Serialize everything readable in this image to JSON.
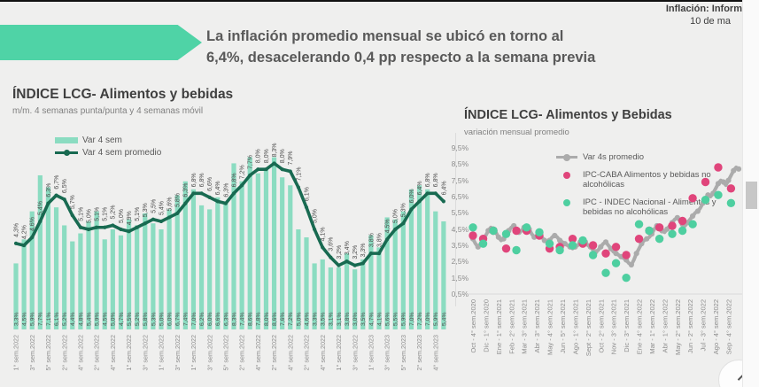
{
  "header": {
    "report_label": "Inflación: Inform",
    "date_label": "10 de ma"
  },
  "banner": {
    "arrow_color": "#4FD3A6",
    "headline_line1": "La inflación promedio mensual se ubicó en torno al",
    "headline_line2": "6,4%, desacelerando 0,4 pp respecto a la semana previa"
  },
  "colors": {
    "bar_green": "#8BDCC1",
    "dark_green": "#186A51",
    "gray_line": "#ABABAB",
    "pink": "#E0457B",
    "mint": "#4ECFA0",
    "label_dark": "#4d4d4d",
    "tick_gray": "#8c8c8c"
  },
  "chart_data": [
    {
      "type": "bar",
      "title": "ÍNDICE LCG- Alimentos y bebidas",
      "subtitle": "m/m. 4 semanas punta/punta y 4 semanas móvil",
      "legend": [
        "Var 4 sem",
        "Var 4 sem promedio"
      ],
      "ylim": [
        0,
        9.5
      ],
      "grid": false,
      "label_format": "es-percent",
      "x_tick_every": 2,
      "x_tick_labels": [
        "1° sem.2022",
        "3° sem.2022",
        "5° sem.2022",
        "2° sem.2022",
        "4° sem.2022",
        "2° sem.2022",
        "4° sem.2022",
        "1° sem.2022",
        "3° sem.2022",
        "1° sem.2022",
        "3° sem.2022",
        "1° sem.2022",
        "3° sem.2022",
        "5° sem.2022",
        "2° sem.2022",
        "4° sem.2022",
        "2° sem.2022",
        "4° sem.2022",
        "2° sem.2022",
        "4° sem.2022",
        "1° sem.2022",
        "3° sem.2022",
        "1° sem.2023",
        "3° sem.2023",
        "5° sem.2023",
        "2° sem.2023",
        "4° sem.2023"
      ],
      "series": [
        {
          "name": "Var 4 sem",
          "type": "bar",
          "values": [
            3.3,
            4.5,
            5.9,
            7.7,
            7.1,
            6.1,
            5.2,
            4.4,
            4.8,
            5.4,
            5.9,
            4.5,
            5.0,
            4.7,
            5.5,
            5.2,
            5.8,
            5.3,
            5.0,
            6.0,
            6.7,
            7.4,
            7.0,
            6.2,
            6.0,
            6.6,
            6.3,
            8.3,
            7.4,
            8.6,
            7.8,
            8.0,
            8.6,
            7.6,
            7.2,
            5.0,
            4.6,
            3.3,
            3.5,
            3.1,
            3.1,
            3.8,
            3.0,
            3.5,
            4.7,
            4.1,
            5.6,
            5.5,
            5.9,
            7.0,
            7.2,
            7.0,
            5.9,
            5.4
          ]
        },
        {
          "name": "Var 4 sem promedio",
          "type": "line",
          "values": [
            4.3,
            4.2,
            4.6,
            5.4,
            6.3,
            6.7,
            6.5,
            5.7,
            5.1,
            5.0,
            5.1,
            5.1,
            5.2,
            5.0,
            4.9,
            5.1,
            5.3,
            5.5,
            5.4,
            5.6,
            5.8,
            6.3,
            6.8,
            6.8,
            6.6,
            6.4,
            6.3,
            6.8,
            7.2,
            7.7,
            8.0,
            8.0,
            8.3,
            8.0,
            7.9,
            7.1,
            6.1,
            5.0,
            4.1,
            3.6,
            3.2,
            3.4,
            3.2,
            3.3,
            3.8,
            3.8,
            4.5,
            5.0,
            5.3,
            6.0,
            6.4,
            6.8,
            6.8,
            6.4
          ]
        }
      ]
    },
    {
      "type": "scatter",
      "title": "ÍNDICE LCG- Alimentos y Bebidas",
      "subtitle": "variación mensual promedio",
      "legend": [
        "Var 4s promedio",
        "IPC-CABA Alimentos y bebidas no alcohólicas",
        "IPC - INDEC Nacional - Alimentos y bebidas no alcohólicas"
      ],
      "ylim": [
        0.5,
        9.5
      ],
      "grid": false,
      "y_tick_labels": [
        "9,5%",
        "8,5%",
        "7,5%",
        "6,5%",
        "5,5%",
        "4,5%",
        "3,5%",
        "2,5%",
        "1,5%",
        "0,5%"
      ],
      "x_tick_labels": [
        "Oct - 4° sem.2020",
        "Dic - 1° sem.2020",
        "Ene - 1° sem.2021",
        "Feb - 2° sem.2021",
        "Mar - 3° sem.2021",
        "Abr - 3° sem.2021",
        "May - 4° sem.2021",
        "Jun - 5° sem.2021",
        "Ago - 1° sem.2021",
        "Sept - 2° sem.2021",
        "Oct - 2° sem.2021",
        "Nov - 3° sem.2021",
        "Dic - 3° sem.2021",
        "Ene - 4° sem.2022",
        "Mar - 1° sem.2022",
        "Abr - 1° sem.2022",
        "May - 2° sem.2022",
        "Jun - 2° sem.2022",
        "Jul - 3° sem.2022",
        "Ago - 4° sem.2022",
        "Sep - 4° sem.2022"
      ],
      "x_tick_week_step": 5,
      "series": [
        {
          "name": "Var 4s promedio",
          "type": "line",
          "values": [
            3.9,
            3.6,
            3.4,
            3.6,
            3.9,
            4.1,
            4.4,
            4.6,
            4.5,
            4.3,
            4.0,
            3.8,
            3.9,
            4.2,
            4.4,
            4.6,
            4.7,
            4.5,
            4.3,
            4.4,
            4.6,
            4.7,
            4.5,
            4.2,
            4.0,
            4.1,
            4.2,
            4.0,
            3.8,
            3.7,
            3.8,
            4.0,
            4.1,
            4.0,
            3.8,
            3.7,
            3.6,
            3.5,
            3.4,
            3.3,
            3.4,
            3.5,
            3.7,
            3.8,
            3.7,
            3.5,
            3.4,
            3.2,
            3.1,
            3.2,
            3.4,
            3.6,
            3.7,
            3.5,
            3.3,
            3.1,
            3.0,
            2.9,
            2.8,
            2.7,
            2.6,
            2.4,
            2.3,
            2.6,
            3.0,
            3.3,
            3.6,
            3.8,
            3.9,
            4.0,
            4.2,
            4.5,
            4.7,
            4.6,
            4.4,
            4.3,
            4.5,
            4.7,
            4.9,
            5.1,
            5.2,
            5.0,
            4.8,
            4.7,
            4.9,
            5.1,
            5.3,
            5.5,
            5.6,
            5.8,
            6.1,
            6.4,
            6.6,
            6.5,
            6.7,
            7.0,
            7.3,
            7.5,
            7.4,
            7.2,
            7.5,
            7.8,
            8.1,
            8.3,
            8.2
          ]
        },
        {
          "name": "IPC-CABA Alimentos y bebidas no alcohólicas",
          "type": "scatter",
          "x": [
            0,
            4,
            8,
            13,
            17,
            21,
            26,
            30,
            34,
            39,
            43,
            47,
            52,
            56,
            60,
            65,
            69,
            73,
            78,
            82,
            86,
            91,
            96,
            101
          ],
          "values": [
            4.1,
            3.9,
            4.4,
            3.3,
            4.4,
            4.4,
            4.1,
            3.3,
            3.4,
            3.9,
            3.6,
            3.5,
            3.0,
            3.4,
            2.9,
            3.9,
            4.4,
            4.6,
            4.7,
            5.0,
            6.4,
            7.4,
            8.3,
            7.0
          ]
        },
        {
          "name": "IPC - INDEC Nacional - Alimentos y bebidas no alcohólicas",
          "type": "scatter",
          "x": [
            0,
            4,
            8,
            13,
            17,
            21,
            26,
            30,
            34,
            39,
            43,
            47,
            52,
            56,
            60,
            65,
            69,
            73,
            78,
            82,
            86,
            91,
            96,
            101
          ],
          "values": [
            4.6,
            3.6,
            4.4,
            4.2,
            3.2,
            4.6,
            4.3,
            3.6,
            3.2,
            3.5,
            3.8,
            2.9,
            1.8,
            2.4,
            1.5,
            4.8,
            4.4,
            3.9,
            4.2,
            4.4,
            4.8,
            6.3,
            6.6,
            6.1
          ]
        }
      ]
    }
  ]
}
